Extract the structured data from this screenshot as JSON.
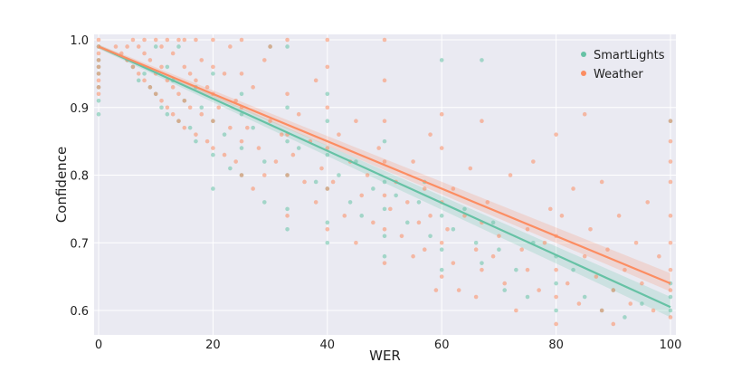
{
  "chart_data": {
    "type": "scatter",
    "title": "",
    "xlabel": "WER",
    "ylabel": "Confidence",
    "xlim": [
      0,
      100
    ],
    "ylim": [
      0.575,
      1.0
    ],
    "x_ticks": [
      0,
      20,
      40,
      60,
      80,
      100
    ],
    "y_ticks": [
      0.6,
      0.7,
      0.8,
      0.9,
      1.0
    ],
    "x_tick_labels": [
      "0",
      "20",
      "40",
      "60",
      "80",
      "100"
    ],
    "y_tick_labels": [
      "0.6",
      "0.7",
      "0.8",
      "0.9",
      "1.0"
    ],
    "grid": true,
    "background": "#eaeaf2",
    "legend_position": "top-right",
    "series": [
      {
        "name": "SmartLights",
        "color": "#66c2a5",
        "fit_line": {
          "x": [
            0,
            100
          ],
          "y": [
            0.99,
            0.605
          ]
        },
        "ci_band": {
          "x": [
            0,
            100
          ],
          "lower": [
            0.987,
            0.59
          ],
          "upper": [
            0.993,
            0.62
          ]
        },
        "points": [
          [
            0,
            0.99
          ],
          [
            0,
            0.97
          ],
          [
            0,
            0.95
          ],
          [
            0,
            0.93
          ],
          [
            0,
            0.91
          ],
          [
            0,
            0.89
          ],
          [
            0,
            0.96
          ],
          [
            5,
            0.97
          ],
          [
            6,
            0.96
          ],
          [
            7,
            0.94
          ],
          [
            8,
            0.95
          ],
          [
            9,
            0.93
          ],
          [
            10,
            0.92
          ],
          [
            10,
            0.99
          ],
          [
            11,
            0.9
          ],
          [
            12,
            0.89
          ],
          [
            12,
            0.96
          ],
          [
            13,
            0.94
          ],
          [
            14,
            0.88
          ],
          [
            14,
            0.99
          ],
          [
            15,
            0.91
          ],
          [
            16,
            0.87
          ],
          [
            17,
            0.93
          ],
          [
            17,
            0.85
          ],
          [
            18,
            0.9
          ],
          [
            20,
            0.88
          ],
          [
            20,
            0.83
          ],
          [
            20,
            0.78
          ],
          [
            20,
            0.95
          ],
          [
            22,
            0.86
          ],
          [
            23,
            0.81
          ],
          [
            25,
            0.84
          ],
          [
            25,
            0.89
          ],
          [
            25,
            0.92
          ],
          [
            25,
            0.8
          ],
          [
            27,
            0.87
          ],
          [
            29,
            0.82
          ],
          [
            29,
            0.76
          ],
          [
            33,
            0.85
          ],
          [
            33,
            0.8
          ],
          [
            33,
            0.75
          ],
          [
            33,
            0.72
          ],
          [
            33,
            0.9
          ],
          [
            35,
            0.84
          ],
          [
            38,
            0.79
          ],
          [
            40,
            0.83
          ],
          [
            40,
            0.78
          ],
          [
            40,
            0.73
          ],
          [
            40,
            0.7
          ],
          [
            40,
            0.88
          ],
          [
            42,
            0.8
          ],
          [
            44,
            0.76
          ],
          [
            45,
            0.82
          ],
          [
            46,
            0.74
          ],
          [
            48,
            0.78
          ],
          [
            50,
            0.79
          ],
          [
            50,
            0.75
          ],
          [
            50,
            0.71
          ],
          [
            50,
            0.68
          ],
          [
            50,
            0.85
          ],
          [
            52,
            0.77
          ],
          [
            54,
            0.73
          ],
          [
            56,
            0.76
          ],
          [
            57,
            0.79
          ],
          [
            58,
            0.71
          ],
          [
            60,
            0.74
          ],
          [
            60,
            0.69
          ],
          [
            60,
            0.66
          ],
          [
            62,
            0.72
          ],
          [
            64,
            0.75
          ],
          [
            66,
            0.7
          ],
          [
            67,
            0.97
          ],
          [
            67,
            0.67
          ],
          [
            69,
            0.73
          ],
          [
            70,
            0.69
          ],
          [
            71,
            0.63
          ],
          [
            73,
            0.66
          ],
          [
            75,
            0.62
          ],
          [
            76,
            0.7
          ],
          [
            80,
            0.68
          ],
          [
            80,
            0.64
          ],
          [
            80,
            0.6
          ],
          [
            83,
            0.66
          ],
          [
            85,
            0.62
          ],
          [
            88,
            0.6
          ],
          [
            90,
            0.63
          ],
          [
            92,
            0.59
          ],
          [
            95,
            0.61
          ],
          [
            100,
            0.88
          ],
          [
            100,
            0.62
          ],
          [
            100,
            0.6
          ],
          [
            100,
            0.64
          ],
          [
            60,
            0.97
          ],
          [
            33,
            0.99
          ],
          [
            30,
            0.99
          ],
          [
            40,
            0.92
          ]
        ]
      },
      {
        "name": "Weather",
        "color": "#fc8d62",
        "fit_line": {
          "x": [
            0,
            100
          ],
          "y": [
            0.99,
            0.64
          ]
        },
        "ci_band": {
          "x": [
            0,
            100
          ],
          "lower": [
            0.987,
            0.628
          ],
          "upper": [
            0.993,
            0.655
          ]
        },
        "points": [
          [
            0,
            1.0
          ],
          [
            0,
            0.99
          ],
          [
            0,
            0.98
          ],
          [
            0,
            0.97
          ],
          [
            0,
            0.96
          ],
          [
            0,
            0.95
          ],
          [
            0,
            0.94
          ],
          [
            0,
            0.93
          ],
          [
            0,
            0.92
          ],
          [
            3,
            0.99
          ],
          [
            4,
            0.98
          ],
          [
            5,
            0.97
          ],
          [
            5,
            0.99
          ],
          [
            6,
            0.96
          ],
          [
            6,
            1.0
          ],
          [
            7,
            0.95
          ],
          [
            7,
            0.99
          ],
          [
            8,
            0.94
          ],
          [
            8,
            0.98
          ],
          [
            8,
            1.0
          ],
          [
            9,
            0.93
          ],
          [
            9,
            0.97
          ],
          [
            10,
            0.92
          ],
          [
            10,
            0.95
          ],
          [
            10,
            1.0
          ],
          [
            11,
            0.91
          ],
          [
            11,
            0.96
          ],
          [
            11,
            0.99
          ],
          [
            12,
            0.9
          ],
          [
            12,
            0.94
          ],
          [
            12,
            1.0
          ],
          [
            13,
            0.89
          ],
          [
            13,
            0.93
          ],
          [
            13,
            0.98
          ],
          [
            14,
            0.88
          ],
          [
            14,
            0.92
          ],
          [
            14,
            1.0
          ],
          [
            15,
            0.87
          ],
          [
            15,
            0.91
          ],
          [
            15,
            0.96
          ],
          [
            15,
            1.0
          ],
          [
            16,
            0.9
          ],
          [
            16,
            0.95
          ],
          [
            17,
            0.86
          ],
          [
            17,
            0.94
          ],
          [
            17,
            1.0
          ],
          [
            18,
            0.89
          ],
          [
            18,
            0.97
          ],
          [
            19,
            0.85
          ],
          [
            19,
            0.93
          ],
          [
            20,
            0.84
          ],
          [
            20,
            0.88
          ],
          [
            20,
            0.92
          ],
          [
            20,
            0.96
          ],
          [
            20,
            1.0
          ],
          [
            21,
            0.9
          ],
          [
            22,
            0.83
          ],
          [
            22,
            0.95
          ],
          [
            23,
            0.87
          ],
          [
            23,
            0.99
          ],
          [
            24,
            0.82
          ],
          [
            24,
            0.91
          ],
          [
            25,
            0.8
          ],
          [
            25,
            0.85
          ],
          [
            25,
            0.9
          ],
          [
            25,
            0.95
          ],
          [
            25,
            1.0
          ],
          [
            26,
            0.87
          ],
          [
            27,
            0.78
          ],
          [
            27,
            0.93
          ],
          [
            28,
            0.84
          ],
          [
            29,
            0.8
          ],
          [
            29,
            0.97
          ],
          [
            30,
            0.88
          ],
          [
            30,
            0.99
          ],
          [
            31,
            0.82
          ],
          [
            32,
            0.86
          ],
          [
            33,
            0.74
          ],
          [
            33,
            0.8
          ],
          [
            33,
            0.86
          ],
          [
            33,
            0.92
          ],
          [
            33,
            1.0
          ],
          [
            34,
            0.83
          ],
          [
            35,
            0.89
          ],
          [
            36,
            0.79
          ],
          [
            37,
            0.85
          ],
          [
            38,
            0.76
          ],
          [
            38,
            0.94
          ],
          [
            39,
            0.81
          ],
          [
            40,
            0.72
          ],
          [
            40,
            0.78
          ],
          [
            40,
            0.84
          ],
          [
            40,
            0.9
          ],
          [
            40,
            0.96
          ],
          [
            40,
            1.0
          ],
          [
            41,
            0.79
          ],
          [
            42,
            0.86
          ],
          [
            43,
            0.74
          ],
          [
            44,
            0.82
          ],
          [
            45,
            0.7
          ],
          [
            45,
            0.88
          ],
          [
            46,
            0.77
          ],
          [
            47,
            0.8
          ],
          [
            48,
            0.73
          ],
          [
            49,
            0.84
          ],
          [
            50,
            0.67
          ],
          [
            50,
            0.72
          ],
          [
            50,
            0.77
          ],
          [
            50,
            0.82
          ],
          [
            50,
            0.88
          ],
          [
            50,
            0.94
          ],
          [
            50,
            1.0
          ],
          [
            51,
            0.75
          ],
          [
            52,
            0.79
          ],
          [
            53,
            0.71
          ],
          [
            54,
            0.76
          ],
          [
            55,
            0.68
          ],
          [
            55,
            0.82
          ],
          [
            56,
            0.73
          ],
          [
            57,
            0.69
          ],
          [
            57,
            0.78
          ],
          [
            58,
            0.74
          ],
          [
            58,
            0.86
          ],
          [
            59,
            0.63
          ],
          [
            60,
            0.65
          ],
          [
            60,
            0.7
          ],
          [
            60,
            0.76
          ],
          [
            60,
            0.84
          ],
          [
            60,
            0.89
          ],
          [
            61,
            0.72
          ],
          [
            62,
            0.78
          ],
          [
            62,
            0.67
          ],
          [
            63,
            0.63
          ],
          [
            64,
            0.74
          ],
          [
            65,
            0.81
          ],
          [
            66,
            0.69
          ],
          [
            66,
            0.62
          ],
          [
            67,
            0.66
          ],
          [
            67,
            0.73
          ],
          [
            67,
            0.88
          ],
          [
            68,
            0.76
          ],
          [
            69,
            0.68
          ],
          [
            70,
            0.71
          ],
          [
            71,
            0.64
          ],
          [
            72,
            0.8
          ],
          [
            73,
            0.6
          ],
          [
            74,
            0.69
          ],
          [
            75,
            0.72
          ],
          [
            75,
            0.66
          ],
          [
            76,
            0.82
          ],
          [
            77,
            0.63
          ],
          [
            78,
            0.7
          ],
          [
            79,
            0.75
          ],
          [
            80,
            0.58
          ],
          [
            80,
            0.62
          ],
          [
            80,
            0.66
          ],
          [
            80,
            0.71
          ],
          [
            80,
            0.86
          ],
          [
            81,
            0.74
          ],
          [
            82,
            0.64
          ],
          [
            83,
            0.78
          ],
          [
            84,
            0.61
          ],
          [
            85,
            0.68
          ],
          [
            85,
            0.89
          ],
          [
            86,
            0.72
          ],
          [
            87,
            0.65
          ],
          [
            88,
            0.6
          ],
          [
            88,
            0.79
          ],
          [
            89,
            0.69
          ],
          [
            90,
            0.63
          ],
          [
            90,
            0.58
          ],
          [
            91,
            0.74
          ],
          [
            92,
            0.66
          ],
          [
            93,
            0.61
          ],
          [
            94,
            0.7
          ],
          [
            95,
            0.64
          ],
          [
            96,
            0.76
          ],
          [
            97,
            0.6
          ],
          [
            98,
            0.68
          ],
          [
            100,
            0.59
          ],
          [
            100,
            0.63
          ],
          [
            100,
            0.66
          ],
          [
            100,
            0.7
          ],
          [
            100,
            0.74
          ],
          [
            100,
            0.79
          ],
          [
            100,
            0.82
          ],
          [
            100,
            0.85
          ],
          [
            100,
            0.88
          ]
        ]
      }
    ]
  }
}
